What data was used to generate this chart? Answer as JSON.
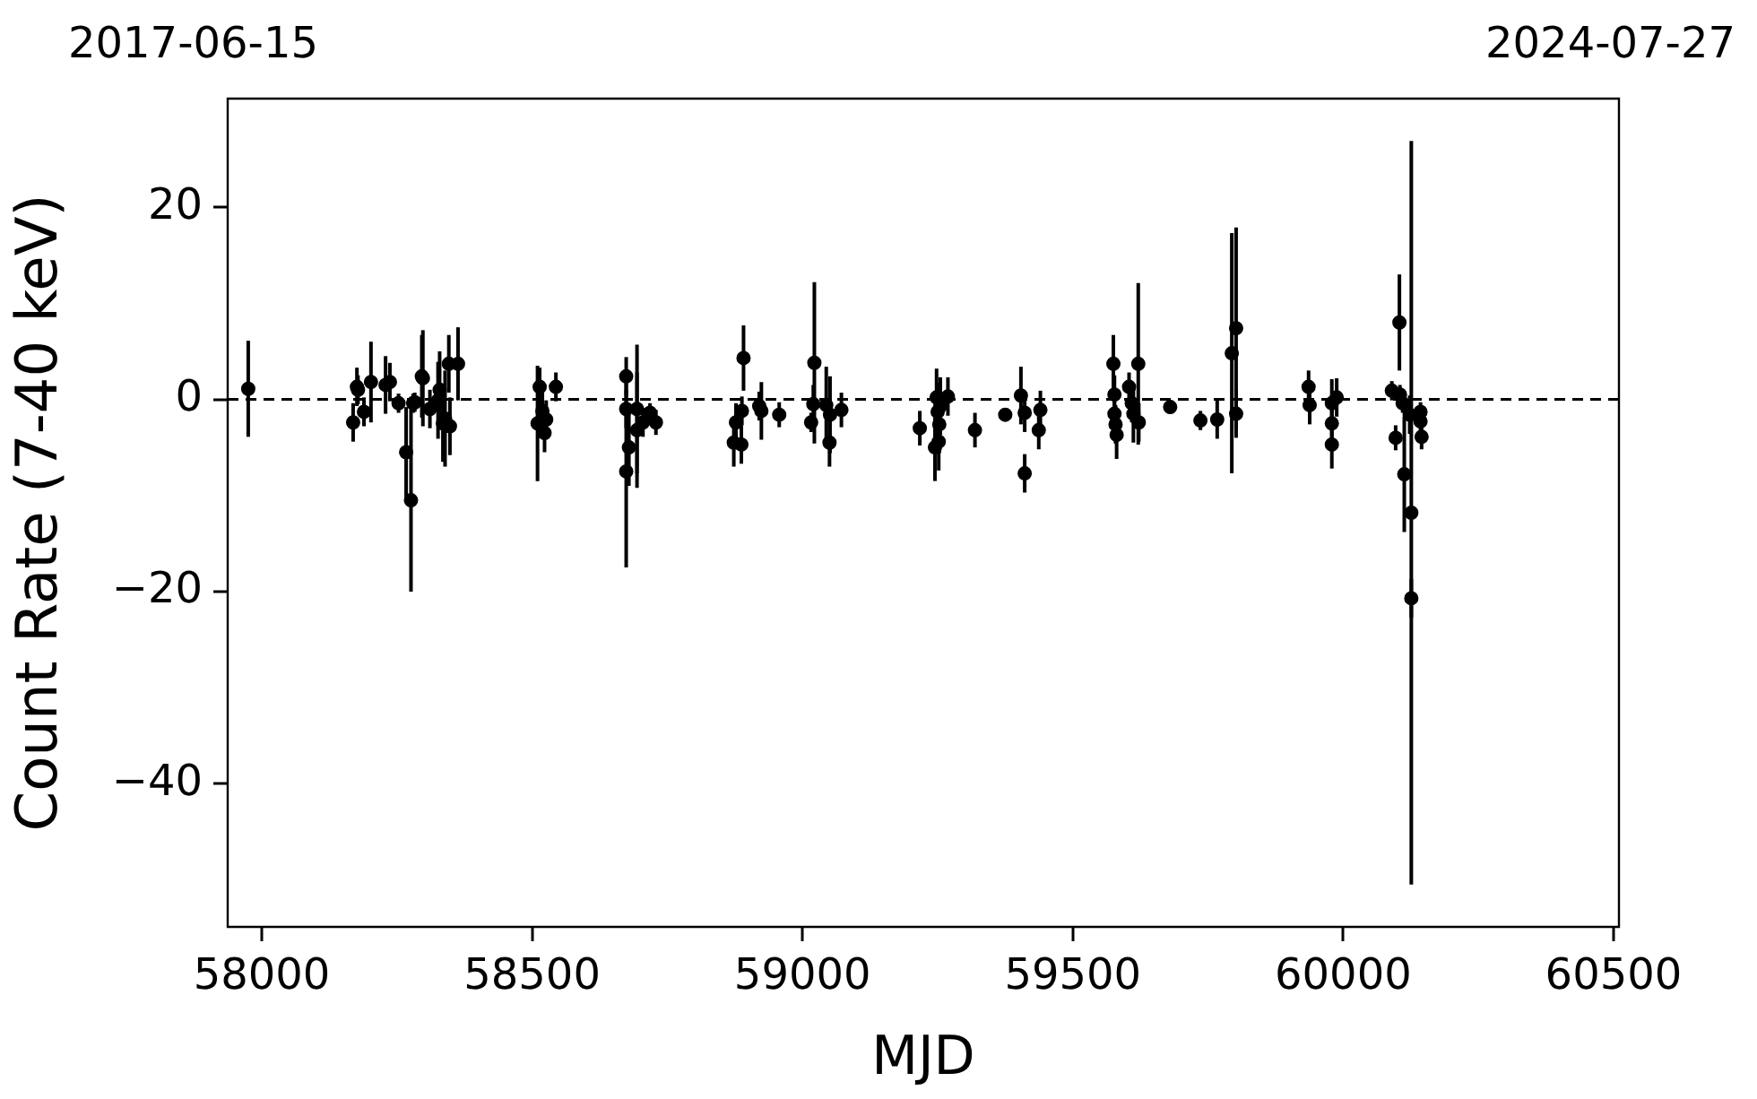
{
  "chart_data": {
    "type": "scatter",
    "xlabel": "MJD",
    "ylabel": "Count Rate (7-40 keV)",
    "annotations": [
      "2017-06-15",
      "2024-07-27"
    ],
    "x": [
      57975,
      58169,
      58176,
      58178,
      58189,
      58202,
      58229,
      58237,
      58253,
      58267,
      58276,
      58280,
      58283,
      58296,
      58298,
      58311,
      58326,
      58329,
      58335,
      58339,
      58346,
      58348,
      58363,
      58510,
      58514,
      58519,
      58523,
      58526,
      58544,
      58674,
      58674,
      58674,
      58679,
      58694,
      58694,
      58705,
      58718,
      58729,
      58873,
      58877,
      58887,
      58888,
      58891,
      58920,
      58924,
      58957,
      59016,
      59020,
      59022,
      59044,
      59050,
      59051,
      59072,
      59217,
      59245,
      59248,
      59250,
      59253,
      59255,
      59252,
      59269,
      59319,
      59375,
      59404,
      59411,
      59411,
      59437,
      59440,
      59575,
      59577,
      59577,
      59579,
      59581,
      59604,
      59609,
      59612,
      59621,
      59622,
      59680,
      59736,
      59767,
      59794,
      59802,
      59802,
      59936,
      59938,
      59979,
      59979,
      59979,
      59988,
      60090,
      60097,
      60104,
      60105,
      60110,
      60113,
      60123,
      60126,
      60126,
      60143,
      60143,
      60145
    ],
    "values": [
      1.1,
      -2.4,
      1.3,
      1.0,
      -1.3,
      1.8,
      1.5,
      1.8,
      -0.4,
      -5.5,
      -10.5,
      -0.4,
      -0.3,
      2.4,
      2.2,
      -1.0,
      -0.1,
      1.0,
      -2.5,
      -2.0,
      3.7,
      -2.8,
      3.7,
      -2.5,
      1.3,
      -1.2,
      -3.5,
      -2.1,
      1.3,
      2.4,
      -1.0,
      -7.5,
      -5.0,
      -1.0,
      -3.2,
      -2.4,
      -1.4,
      -2.4,
      -4.5,
      -2.4,
      -4.7,
      -1.2,
      4.3,
      -0.7,
      -1.2,
      -1.6,
      -2.4,
      -0.5,
      3.8,
      -0.6,
      -4.5,
      -1.6,
      -1.1,
      -3.0,
      -5.0,
      0.2,
      -1.3,
      -2.6,
      -0.7,
      -4.4,
      0.3,
      -3.2,
      -1.6,
      0.4,
      -7.7,
      -1.4,
      -3.2,
      -1.1,
      3.7,
      0.5,
      -1.5,
      -2.6,
      -3.7,
      1.3,
      -0.4,
      -1.5,
      3.7,
      -2.4,
      -0.8,
      -2.2,
      -2.1,
      4.8,
      7.4,
      -1.5,
      1.3,
      -0.6,
      -0.4,
      -2.5,
      -4.7,
      0.2,
      0.9,
      -4.0,
      8.0,
      0.5,
      -0.4,
      -7.8,
      -1.6,
      -11.8,
      -20.7,
      -1.3,
      -2.3,
      -3.9
    ],
    "errors": [
      5,
      2,
      2,
      1.5,
      1.5,
      4.2,
      3,
      2,
      1,
      4.7,
      9.5,
      1,
      1,
      4.3,
      5,
      2,
      4,
      4,
      4,
      5,
      3,
      3,
      3.8,
      6,
      2,
      2,
      2,
      2,
      1.5,
      2,
      2,
      10,
      4,
      6.7,
      6,
      1.5,
      1,
      1.3,
      2.5,
      2,
      2,
      1.5,
      3.4,
      1.5,
      3,
      1.3,
      1,
      2,
      8.4,
      4,
      2.5,
      4,
      1.8,
      1.8,
      3.5,
      3,
      3,
      3,
      3,
      3,
      2,
      1.8,
      0.6,
      3,
      2,
      2,
      2,
      2,
      3,
      2,
      2,
      2,
      2.5,
      1.5,
      2,
      3,
      8.4,
      2,
      0.7,
      1,
      2,
      12.5,
      10.5,
      2.5,
      1.7,
      2,
      2.5,
      2.5,
      2.5,
      2,
      1,
      1.3,
      5,
      1,
      1,
      6,
      2,
      38.7,
      2,
      1,
      1,
      1.3
    ],
    "color": "#000000",
    "marker": "circle",
    "legend": false,
    "grid": false,
    "xlim": [
      57937,
      60510
    ],
    "xticks": [
      58000,
      58500,
      59000,
      59500,
      60000,
      60500
    ],
    "ylim": [
      -54.9,
      31.3
    ],
    "yticks": [
      {
        "value": -40,
        "label": "−40"
      },
      {
        "value": -20,
        "label": "−20"
      },
      0,
      20
    ],
    "ref_lines": [
      {
        "axis": "y",
        "value": 0,
        "color": "#000000",
        "line_style": "dashed"
      }
    ]
  }
}
